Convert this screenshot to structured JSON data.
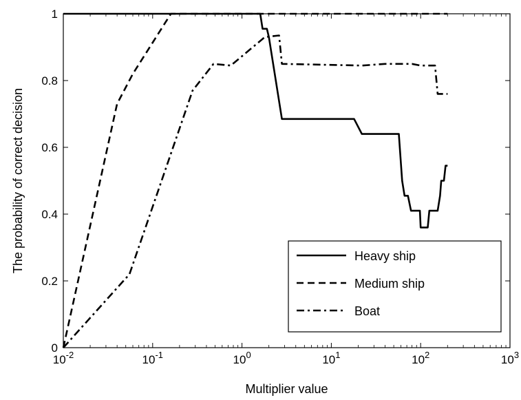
{
  "chart_data": {
    "type": "line",
    "xscale": "log",
    "xlim": [
      0.01,
      1000
    ],
    "ylim": [
      0,
      1
    ],
    "xticks": [
      {
        "value": 0.01,
        "base": "10",
        "exp": "-2"
      },
      {
        "value": 0.1,
        "base": "10",
        "exp": "-1"
      },
      {
        "value": 1,
        "base": "10",
        "exp": "0"
      },
      {
        "value": 10,
        "base": "10",
        "exp": "1"
      },
      {
        "value": 100,
        "base": "10",
        "exp": "2"
      },
      {
        "value": 1000,
        "base": "10",
        "exp": "3"
      }
    ],
    "yticks": [
      {
        "value": 0,
        "label": "0"
      },
      {
        "value": 0.2,
        "label": "0.2"
      },
      {
        "value": 0.4,
        "label": "0.4"
      },
      {
        "value": 0.6,
        "label": "0.6"
      },
      {
        "value": 0.8,
        "label": "0.8"
      },
      {
        "value": 1,
        "label": "1"
      }
    ],
    "xlabel": "Multiplier value",
    "ylabel": "The probability of correct decision",
    "grid": false,
    "legend_position": "lower-right",
    "series": [
      {
        "name": "Heavy ship",
        "dash": "solid",
        "points": [
          [
            0.01,
            1.0
          ],
          [
            1.6,
            1.0
          ],
          [
            1.7,
            0.955
          ],
          [
            1.9,
            0.955
          ],
          [
            2.0,
            0.93
          ],
          [
            2.8,
            0.685
          ],
          [
            18,
            0.685
          ],
          [
            22,
            0.64
          ],
          [
            57,
            0.64
          ],
          [
            62,
            0.5
          ],
          [
            66,
            0.455
          ],
          [
            72,
            0.455
          ],
          [
            78,
            0.41
          ],
          [
            98,
            0.41
          ],
          [
            100,
            0.36
          ],
          [
            120,
            0.36
          ],
          [
            125,
            0.41
          ],
          [
            155,
            0.41
          ],
          [
            165,
            0.455
          ],
          [
            170,
            0.5
          ],
          [
            182,
            0.5
          ],
          [
            190,
            0.545
          ],
          [
            200,
            0.545
          ]
        ]
      },
      {
        "name": "Medium ship",
        "dash": "dashed",
        "points": [
          [
            0.01,
            0.0
          ],
          [
            0.04,
            0.73
          ],
          [
            0.06,
            0.82
          ],
          [
            0.16,
            1.0
          ],
          [
            200,
            1.0
          ]
        ]
      },
      {
        "name": "Boat",
        "dash": "dashdot",
        "points": [
          [
            0.01,
            0.0
          ],
          [
            0.055,
            0.22
          ],
          [
            0.28,
            0.77
          ],
          [
            0.48,
            0.85
          ],
          [
            0.75,
            0.845
          ],
          [
            1.8,
            0.93
          ],
          [
            2.6,
            0.935
          ],
          [
            2.8,
            0.85
          ],
          [
            22,
            0.845
          ],
          [
            40,
            0.85
          ],
          [
            80,
            0.85
          ],
          [
            100,
            0.845
          ],
          [
            145,
            0.845
          ],
          [
            155,
            0.76
          ],
          [
            200,
            0.76
          ]
        ]
      }
    ]
  }
}
